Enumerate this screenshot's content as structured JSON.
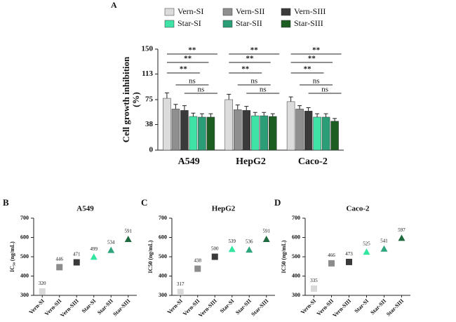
{
  "chart_data": [
    {
      "type": "bar",
      "panel": "A",
      "ylabel": [
        "Cell growth inhibition",
        "(%)"
      ],
      "categories": [
        "A549",
        "HepG2",
        "Caco-2"
      ],
      "series": [
        {
          "name": "Vern-SI",
          "color": "#dcdcdc",
          "values": [
            77,
            75,
            72
          ],
          "errors": [
            8,
            8,
            7
          ]
        },
        {
          "name": "Vern-SII",
          "color": "#8f8f8f",
          "values": [
            61,
            60,
            61
          ],
          "errors": [
            7,
            7,
            5
          ]
        },
        {
          "name": "Vern-SIII",
          "color": "#3a3a3a",
          "values": [
            59,
            59,
            58
          ],
          "errors": [
            7,
            6,
            5
          ]
        },
        {
          "name": "Star-SI",
          "color": "#3fe3a6",
          "values": [
            50,
            51,
            49
          ],
          "errors": [
            5,
            5,
            5
          ]
        },
        {
          "name": "Star-SII",
          "color": "#2b9e78",
          "values": [
            49,
            51,
            49
          ],
          "errors": [
            5,
            5,
            5
          ]
        },
        {
          "name": "Star-SIII",
          "color": "#1c5e22",
          "values": [
            49,
            50,
            43
          ],
          "errors": [
            5,
            4,
            4
          ]
        }
      ],
      "significance": [
        [
          "**",
          "**",
          "**",
          "ns",
          "ns"
        ],
        [
          "**",
          "**",
          "**",
          "ns",
          "ns"
        ],
        [
          "**",
          "**",
          "**",
          "ns",
          "ns"
        ]
      ],
      "ylim": [
        0,
        150
      ],
      "yticks": [
        0,
        38,
        75,
        113,
        150
      ]
    },
    {
      "type": "scatter",
      "panel": "B",
      "title": "A549",
      "ylabel": "IC₅₀ (ng/mL)",
      "categories": [
        "Vern-SI",
        "Vern-SII",
        "Vern-SIII",
        "Star-SI",
        "Star-SII",
        "Star-SIII"
      ],
      "values": [
        320,
        446,
        471,
        499,
        534,
        591
      ],
      "colors": [
        "#d9d9d9",
        "#8c8c8c",
        "#3a3a3a",
        "#33e6a0",
        "#2fa57e",
        "#1f6b3f"
      ],
      "markers": [
        "square",
        "square",
        "square",
        "triangle",
        "triangle",
        "triangle"
      ],
      "ylim": [
        300,
        700
      ],
      "yticks": [
        300,
        400,
        500,
        600,
        700
      ]
    },
    {
      "type": "scatter",
      "panel": "C",
      "title": "HepG2",
      "ylabel": "IC50 (ng/mL)",
      "categories": [
        "Vern-SI",
        "Vern-SII",
        "Vern-SIII",
        "Star-SI",
        "Star-SII",
        "Star-SIII"
      ],
      "values": [
        317,
        438,
        500,
        539,
        536,
        591
      ],
      "colors": [
        "#d9d9d9",
        "#8c8c8c",
        "#3a3a3a",
        "#33e6a0",
        "#2fa57e",
        "#1f6b3f"
      ],
      "markers": [
        "square",
        "square",
        "square",
        "triangle",
        "triangle",
        "triangle"
      ],
      "ylim": [
        300,
        700
      ],
      "yticks": [
        300,
        400,
        500,
        600,
        700
      ]
    },
    {
      "type": "scatter",
      "panel": "D",
      "title": "Caco-2",
      "ylabel": "IC50 (ng/mL)",
      "categories": [
        "Vern-SI",
        "Vern-SII",
        "Vern-SIII",
        "Star-SI",
        "Star-SII",
        "Star-SIII"
      ],
      "values": [
        335,
        466,
        473,
        525,
        541,
        597
      ],
      "colors": [
        "#d9d9d9",
        "#8c8c8c",
        "#3a3a3a",
        "#33e6a0",
        "#2fa57e",
        "#1f6b3f"
      ],
      "markers": [
        "square",
        "square",
        "square",
        "triangle",
        "triangle",
        "triangle"
      ],
      "ylim": [
        300,
        700
      ],
      "yticks": [
        300,
        400,
        500,
        600,
        700
      ]
    }
  ]
}
